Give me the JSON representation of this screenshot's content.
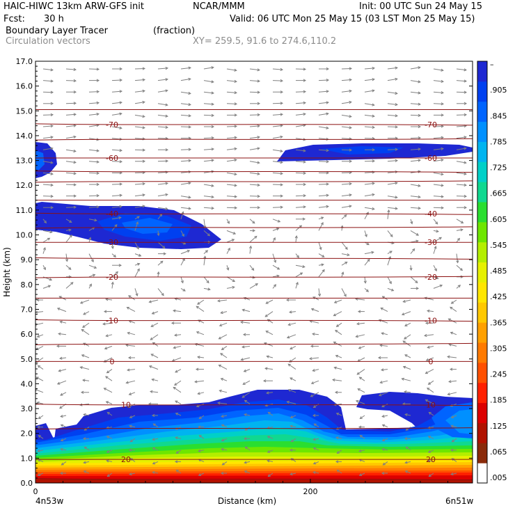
{
  "header": {
    "model": "HAIC-HIWC 13km ARW-GFS init",
    "org": "NCAR/MMM",
    "init": "Init: 00 UTC Sun 24 May 15",
    "fcst_label": "Fcst:",
    "fcst_value": "30 h",
    "valid": "Valid: 06 UTC Mon 25 May 15 (03 LST Mon 25 May 15)",
    "field": "Boundary Layer Tracer",
    "field_units": "(fraction)",
    "vectors": "Circulation vectors",
    "xy": "XY= 259.5, 91.6 to 274.6,110.2"
  },
  "chart_data": {
    "type": "heatmap",
    "xlabel": "Distance (km)",
    "ylabel": "Height (km)",
    "xlim": [
      0,
      318
    ],
    "ylim": [
      0,
      17
    ],
    "x_ticks": [
      {
        "value": 0,
        "label": "0"
      },
      {
        "value": 200,
        "label": "200"
      }
    ],
    "y_ticks": [
      {
        "value": 0,
        "label": "0.0"
      },
      {
        "value": 1,
        "label": "1.0"
      },
      {
        "value": 2,
        "label": "2.0"
      },
      {
        "value": 3,
        "label": "3.0"
      },
      {
        "value": 4,
        "label": "4.0"
      },
      {
        "value": 5,
        "label": "5.0"
      },
      {
        "value": 6,
        "label": "6.0"
      },
      {
        "value": 7,
        "label": "7.0"
      },
      {
        "value": 8,
        "label": "8.0"
      },
      {
        "value": 9,
        "label": "9.0"
      },
      {
        "value": 10,
        "label": "10.0"
      },
      {
        "value": 11,
        "label": "11.0"
      },
      {
        "value": 12,
        "label": "12.0"
      },
      {
        "value": 13,
        "label": "13.0"
      },
      {
        "value": 14,
        "label": "14.0"
      },
      {
        "value": 15,
        "label": "15.0"
      },
      {
        "value": 16,
        "label": "16.0"
      },
      {
        "value": 17,
        "label": "17.0"
      }
    ],
    "left_corner": "4n53w",
    "right_corner": "6n51w",
    "colorbar": {
      "labels": [
        ".005",
        ".065",
        ".125",
        ".185",
        ".245",
        ".305",
        ".365",
        ".425",
        ".485",
        ".545",
        ".605",
        ".665",
        ".725",
        ".785",
        ".845",
        ".905",
        "–"
      ],
      "colors": [
        "#ffffff",
        "#8a2a0a",
        "#b01200",
        "#dc0000",
        "#ff2000",
        "#ff5000",
        "#ff7a00",
        "#ffa000",
        "#ffc800",
        "#ffe600",
        "#e6f000",
        "#b4ee00",
        "#6ee600",
        "#2ade30",
        "#10d890",
        "#00d0c8",
        "#00b4f0",
        "#0090ff",
        "#0064ff",
        "#0040f0",
        "#1e28d2"
      ]
    },
    "isotherms": [
      {
        "height": 0.15,
        "label": ""
      },
      {
        "height": 0.95,
        "label": "20"
      },
      {
        "height": 2.2,
        "label": ""
      },
      {
        "height": 3.15,
        "label": "10"
      },
      {
        "height": 4.9,
        "label": "0"
      },
      {
        "height": 5.6,
        "label": ""
      },
      {
        "height": 6.55,
        "label": "-10"
      },
      {
        "height": 7.45,
        "label": ""
      },
      {
        "height": 8.3,
        "label": "-20"
      },
      {
        "height": 9.05,
        "label": ""
      },
      {
        "height": 9.7,
        "label": "-30"
      },
      {
        "height": 10.3,
        "label": ""
      },
      {
        "height": 10.85,
        "label": "-40"
      },
      {
        "height": 11.4,
        "label": ""
      },
      {
        "height": 12.15,
        "label": ""
      },
      {
        "height": 12.55,
        "label": ""
      },
      {
        "height": 13.1,
        "label": "-60"
      },
      {
        "height": 13.85,
        "label": ""
      },
      {
        "height": 14.45,
        "label": "-70"
      },
      {
        "height": 15.05,
        "label": ""
      }
    ]
  }
}
